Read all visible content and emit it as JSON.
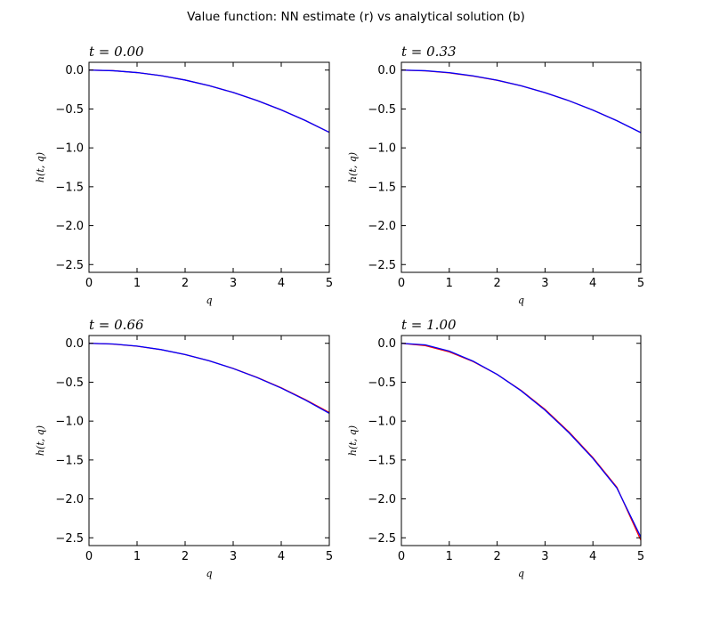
{
  "figure_title": "Value function: NN estimate (r) vs analytical solution (b)",
  "chart_data": [
    {
      "type": "line",
      "title": "t = 0.00",
      "xlabel": "q",
      "ylabel": "h(t, q)",
      "xlim": [
        0,
        5
      ],
      "ylim": [
        -2.6,
        0.1
      ],
      "xticks": [
        "0",
        "1",
        "2",
        "3",
        "4",
        "5"
      ],
      "yticks": [
        "0.0",
        "−0.5",
        "−1.0",
        "−1.5",
        "−2.0",
        "−2.5"
      ],
      "x": [
        0,
        0.5,
        1,
        1.5,
        2,
        2.5,
        3,
        3.5,
        4,
        4.5,
        5
      ],
      "series": [
        {
          "color": "#ff0000",
          "values": [
            0,
            -0.008,
            -0.032,
            -0.072,
            -0.128,
            -0.2,
            -0.288,
            -0.392,
            -0.512,
            -0.648,
            -0.8
          ]
        },
        {
          "color": "#0000ff",
          "values": [
            0,
            -0.008,
            -0.032,
            -0.072,
            -0.128,
            -0.2,
            -0.288,
            -0.392,
            -0.512,
            -0.648,
            -0.8
          ]
        }
      ]
    },
    {
      "type": "line",
      "title": "t = 0.33",
      "xlabel": "q",
      "ylabel": "h(t, q)",
      "xlim": [
        0,
        5
      ],
      "ylim": [
        -2.6,
        0.1
      ],
      "xticks": [
        "0",
        "1",
        "2",
        "3",
        "4",
        "5"
      ],
      "yticks": [
        "0.0",
        "−0.5",
        "−1.0",
        "−1.5",
        "−2.0",
        "−2.5"
      ],
      "x": [
        0,
        0.5,
        1,
        1.5,
        2,
        2.5,
        3,
        3.5,
        4,
        4.5,
        5
      ],
      "series": [
        {
          "color": "#ff0000",
          "values": [
            0,
            -0.01,
            -0.036,
            -0.077,
            -0.131,
            -0.202,
            -0.29,
            -0.394,
            -0.514,
            -0.65,
            -0.803
          ]
        },
        {
          "color": "#0000ff",
          "values": [
            0,
            -0.008,
            -0.033,
            -0.074,
            -0.13,
            -0.202,
            -0.29,
            -0.394,
            -0.515,
            -0.651,
            -0.804
          ]
        }
      ]
    },
    {
      "type": "line",
      "title": "t = 0.66",
      "xlabel": "q",
      "ylabel": "h(t, q)",
      "xlim": [
        0,
        5
      ],
      "ylim": [
        -2.6,
        0.1
      ],
      "xticks": [
        "0",
        "1",
        "2",
        "3",
        "4",
        "5"
      ],
      "yticks": [
        "0.0",
        "−0.5",
        "−1.0",
        "−1.5",
        "−2.0",
        "−2.5"
      ],
      "x": [
        0,
        0.5,
        1,
        1.5,
        2,
        2.5,
        3,
        3.5,
        4,
        4.5,
        5
      ],
      "series": [
        {
          "color": "#ff0000",
          "values": [
            0,
            -0.01,
            -0.037,
            -0.082,
            -0.145,
            -0.225,
            -0.323,
            -0.439,
            -0.572,
            -0.723,
            -0.89
          ]
        },
        {
          "color": "#0000ff",
          "values": [
            0,
            -0.009,
            -0.036,
            -0.081,
            -0.144,
            -0.225,
            -0.324,
            -0.441,
            -0.576,
            -0.729,
            -0.9
          ]
        }
      ]
    },
    {
      "type": "line",
      "title": "t = 1.00",
      "xlabel": "q",
      "ylabel": "h(t, q)",
      "xlim": [
        0,
        5
      ],
      "ylim": [
        -2.6,
        0.1
      ],
      "xticks": [
        "0",
        "1",
        "2",
        "3",
        "4",
        "5"
      ],
      "yticks": [
        "0.0",
        "−0.5",
        "−1.0",
        "−1.5",
        "−2.0",
        "−2.5"
      ],
      "x": [
        0,
        0.5,
        1,
        1.5,
        2,
        2.5,
        3,
        3.5,
        4,
        4.5,
        5
      ],
      "series": [
        {
          "color": "#ff0000",
          "values": [
            0,
            -0.03,
            -0.11,
            -0.235,
            -0.4,
            -0.605,
            -0.85,
            -1.14,
            -1.47,
            -1.85,
            -2.53
          ]
        },
        {
          "color": "#0000ff",
          "values": [
            0,
            -0.02,
            -0.1,
            -0.23,
            -0.4,
            -0.61,
            -0.86,
            -1.15,
            -1.48,
            -1.86,
            -2.49
          ]
        }
      ]
    }
  ]
}
